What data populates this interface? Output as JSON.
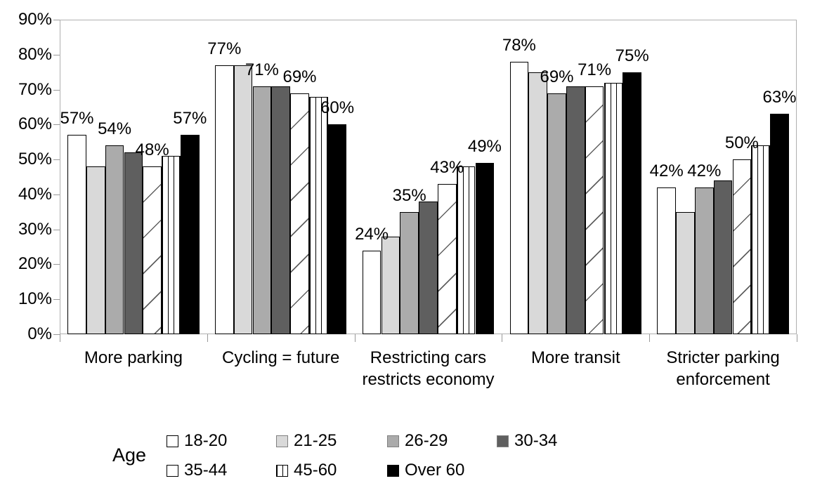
{
  "chart_data": {
    "type": "bar",
    "legend_title": "Age",
    "legend_position": "bottom",
    "grid": false,
    "categories": [
      "More parking",
      "Cycling = future",
      "Restricting cars\nrestricts economy",
      "More transit",
      "Stricter parking\nenforcement"
    ],
    "series": [
      {
        "name": "18-20",
        "style": "white",
        "values": [
          57,
          77,
          24,
          78,
          42
        ]
      },
      {
        "name": "21-25",
        "style": "light-gray",
        "values": [
          48,
          77,
          28,
          75,
          35
        ]
      },
      {
        "name": "26-29",
        "style": "mid-gray",
        "values": [
          54,
          71,
          35,
          69,
          42
        ]
      },
      {
        "name": "30-34",
        "style": "dark-gray",
        "values": [
          52,
          71,
          38,
          71,
          44
        ]
      },
      {
        "name": "35-44",
        "style": "diagonal-hatch",
        "values": [
          48,
          69,
          43,
          71,
          50
        ]
      },
      {
        "name": "45-60",
        "style": "vertical-lines",
        "values": [
          51,
          68,
          48,
          72,
          54
        ]
      },
      {
        "name": "Over 60",
        "style": "black",
        "values": [
          57,
          60,
          49,
          75,
          63
        ]
      }
    ],
    "data_labels": {
      "labeled_series_indices": [
        0,
        2,
        4,
        6
      ],
      "suffix": "%"
    },
    "y_axis": {
      "min": 0,
      "max": 90,
      "step": 10,
      "tick_labels": [
        "0%",
        "10%",
        "20%",
        "30%",
        "40%",
        "50%",
        "60%",
        "70%",
        "80%",
        "90%"
      ]
    },
    "colors": {
      "white_fill": "#ffffff",
      "light_gray": "#d9d9d9",
      "mid_gray": "#ababab",
      "dark_gray": "#5f5f5f",
      "black_fill": "#000000",
      "bar_border": "#000000",
      "hatch_line": "#606060",
      "stripe_line": "#000000",
      "axis_line": "#b0b0b0",
      "tick_mark": "#999999",
      "gray_swatch_border": "#808080",
      "text": "#000000"
    }
  }
}
